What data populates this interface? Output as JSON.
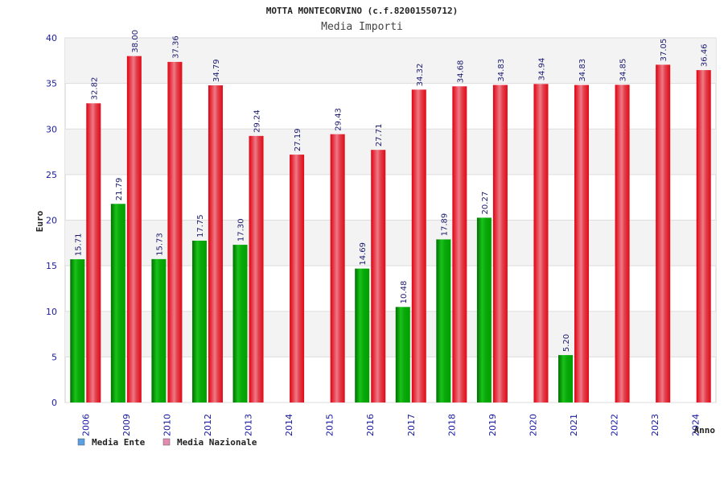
{
  "chart_data": {
    "type": "bar",
    "title": "MOTTA MONTECORVINO (c.f.82001550712)",
    "subtitle": "Media Importi",
    "ylabel": "Euro",
    "xlabel": "Anno",
    "ylim": [
      0,
      40
    ],
    "yticks": [
      0,
      5,
      10,
      15,
      20,
      25,
      30,
      35,
      40
    ],
    "grid": true,
    "legend_position": "bottom-left",
    "categories": [
      "2006",
      "2009",
      "2010",
      "2012",
      "2013",
      "2014",
      "2015",
      "2016",
      "2017",
      "2018",
      "2019",
      "2020",
      "2021",
      "2022",
      "2023",
      "2024"
    ],
    "series": [
      {
        "name": "Media Ente",
        "legend_color": "#5aa0e6",
        "bar_color": "#1fb81f",
        "values": [
          15.71,
          21.79,
          15.73,
          17.75,
          17.3,
          null,
          null,
          14.69,
          10.48,
          17.89,
          20.27,
          null,
          5.2,
          null,
          null,
          null
        ],
        "labels": [
          "15.71",
          "21.79",
          "15.73",
          "17.75",
          "17.30",
          "",
          "",
          "14.69",
          "10.48",
          "17.89",
          "20.27",
          "",
          "5.20",
          "",
          "",
          ""
        ]
      },
      {
        "name": "Media Nazionale",
        "legend_color": "#e58ab0",
        "bar_color": "#e8141e",
        "values": [
          32.82,
          38.0,
          37.36,
          34.79,
          29.24,
          27.19,
          29.43,
          27.71,
          34.32,
          34.68,
          34.83,
          34.94,
          34.83,
          34.85,
          37.05,
          36.46
        ],
        "labels": [
          "32.82",
          "38.00",
          "37.36",
          "34.79",
          "29.24",
          "27.19",
          "29.43",
          "27.71",
          "34.32",
          "34.68",
          "34.83",
          "34.94",
          "34.83",
          "34.85",
          "37.05",
          "36.46"
        ]
      }
    ]
  }
}
